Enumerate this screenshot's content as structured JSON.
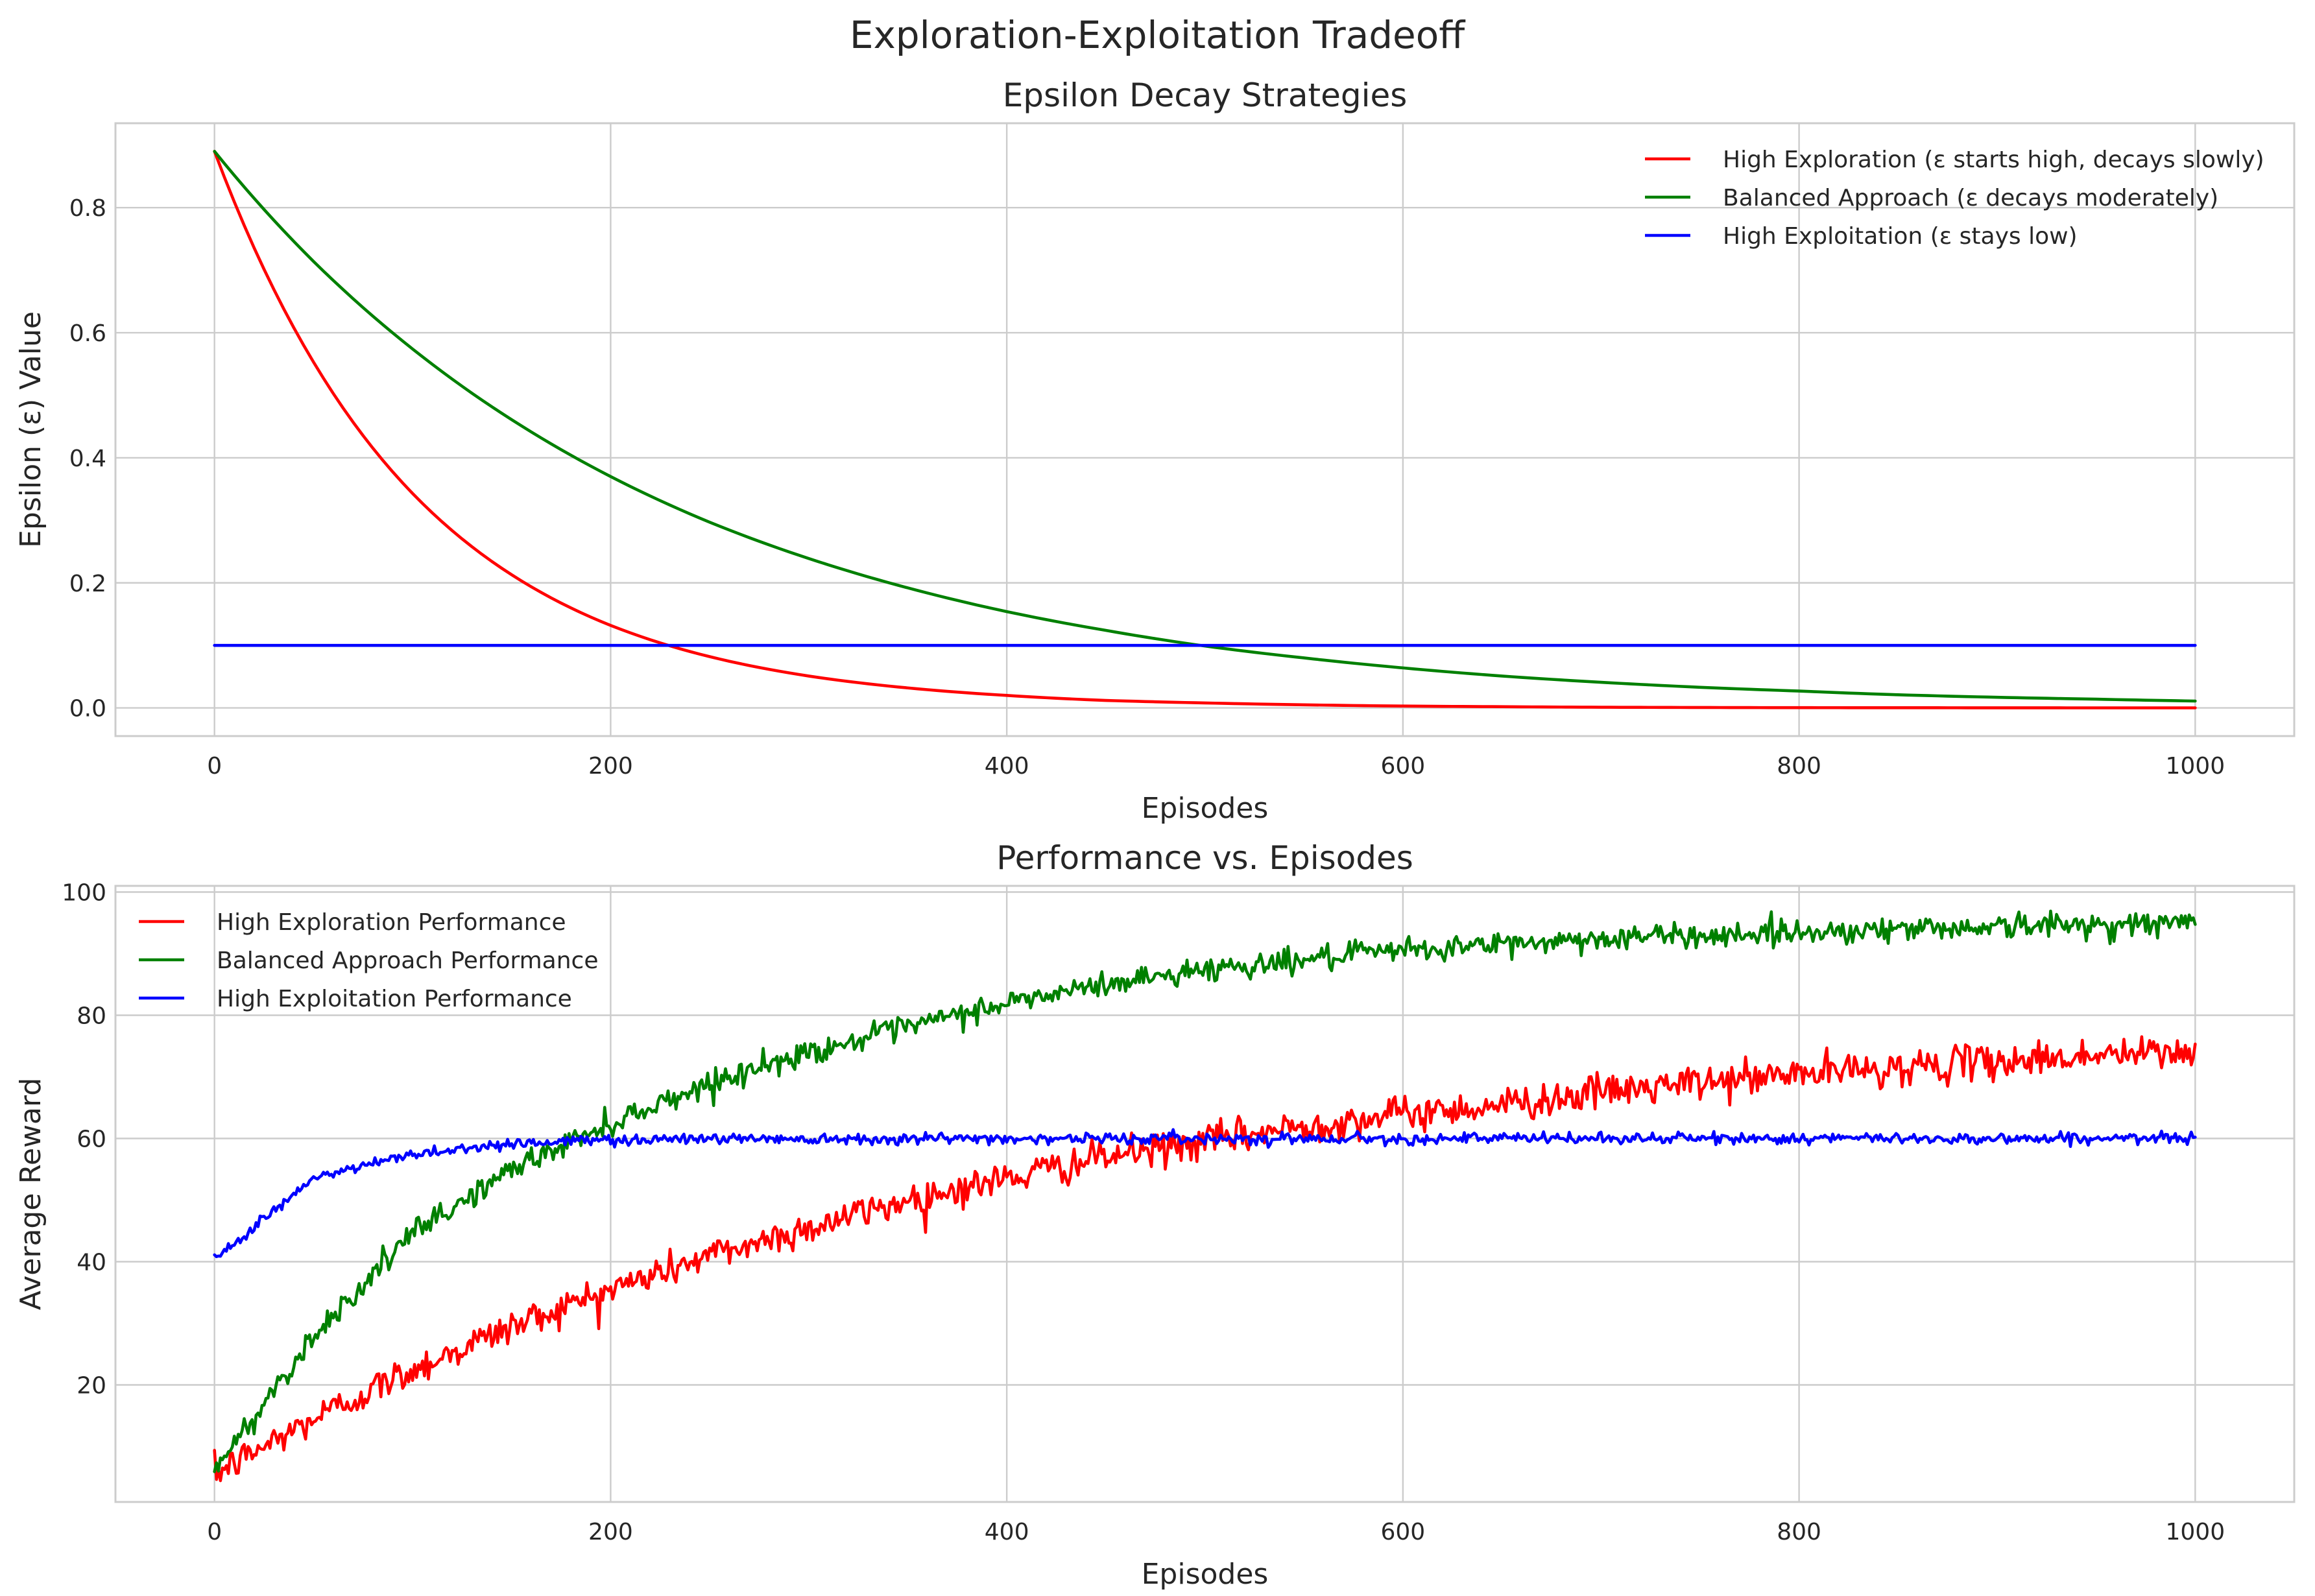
{
  "figure": {
    "suptitle": "Exploration-Exploitation Tradeoff"
  },
  "colors": {
    "exploration": "#ff0000",
    "balanced": "#008000",
    "exploitation": "#0000ff",
    "grid": "#cccccc",
    "frame": "#cccccc",
    "text": "#262626"
  },
  "chart_data": [
    {
      "type": "line",
      "title": "Epsilon Decay Strategies",
      "xlabel": "Episodes",
      "ylabel": "Epsilon (ε) Value",
      "xlim": [
        -50,
        1050
      ],
      "ylim": [
        -0.045,
        0.935
      ],
      "xticks": [
        0,
        200,
        400,
        600,
        800,
        1000
      ],
      "yticks": [
        0.0,
        0.2,
        0.4,
        0.6,
        0.8
      ],
      "xtick_labels": [
        "0",
        "200",
        "400",
        "600",
        "800",
        "1000"
      ],
      "ytick_labels": [
        "0.0",
        "0.2",
        "0.4",
        "0.6",
        "0.8"
      ],
      "grid": true,
      "legend_position": "upper right",
      "x": [
        0,
        50,
        100,
        150,
        200,
        250,
        300,
        350,
        400,
        450,
        500,
        550,
        600,
        650,
        700,
        750,
        800,
        850,
        900,
        950,
        1000
      ],
      "series": [
        {
          "name": "High Exploration (ε starts high, decays slowly)",
          "color_key": "exploration",
          "values": [
            0.89,
            0.553,
            0.343,
            0.213,
            0.132,
            0.082,
            0.051,
            0.032,
            0.02,
            0.012,
            0.008,
            0.005,
            0.003,
            0.002,
            0.0011,
            0.0007,
            0.0004,
            0.0003,
            0.0002,
            0.0001,
            0.0001
          ]
        },
        {
          "name": "Balanced Approach (ε decays moderately)",
          "color_key": "balanced",
          "values": [
            0.89,
            0.714,
            0.574,
            0.461,
            0.37,
            0.297,
            0.239,
            0.192,
            0.154,
            0.124,
            0.099,
            0.08,
            0.064,
            0.051,
            0.041,
            0.033,
            0.027,
            0.021,
            0.017,
            0.014,
            0.011
          ]
        },
        {
          "name": "High Exploitation (ε stays low)",
          "color_key": "exploitation",
          "values": [
            0.1,
            0.1,
            0.1,
            0.1,
            0.1,
            0.1,
            0.1,
            0.1,
            0.1,
            0.1,
            0.1,
            0.1,
            0.1,
            0.1,
            0.1,
            0.1,
            0.1,
            0.1,
            0.1,
            0.1,
            0.1
          ]
        }
      ]
    },
    {
      "type": "line",
      "title": "Performance vs. Episodes",
      "xlabel": "Episodes",
      "ylabel": "Average Reward",
      "xlim": [
        -50,
        1050
      ],
      "ylim": [
        1,
        101
      ],
      "xticks": [
        0,
        200,
        400,
        600,
        800,
        1000
      ],
      "yticks": [
        20,
        40,
        60,
        80,
        100
      ],
      "xtick_labels": [
        "0",
        "200",
        "400",
        "600",
        "800",
        "1000"
      ],
      "ytick_labels": [
        "20",
        "40",
        "60",
        "80",
        "100"
      ],
      "grid": true,
      "legend_position": "upper left",
      "noisy": true,
      "x": [
        0,
        50,
        100,
        150,
        200,
        250,
        300,
        350,
        400,
        450,
        500,
        550,
        600,
        650,
        700,
        750,
        800,
        850,
        900,
        950,
        1000
      ],
      "series": [
        {
          "name": "High Exploration Performance",
          "color_key": "exploration",
          "noise": 1.4,
          "values": [
            5.5,
            14.5,
            22.5,
            29.5,
            35.5,
            41,
            45.5,
            50,
            53.5,
            57,
            59.5,
            62,
            64,
            65.5,
            67.5,
            69,
            70.5,
            71.5,
            72.5,
            73.5,
            74
          ]
        },
        {
          "name": "Balanced Approach Performance",
          "color_key": "balanced",
          "noise": 1.0,
          "values": [
            6,
            28,
            44.5,
            55,
            62.5,
            69,
            74,
            78,
            82,
            85,
            87.5,
            89,
            90.5,
            91.5,
            92.5,
            93,
            93.5,
            94,
            94.5,
            94.7,
            95
          ]
        },
        {
          "name": "High Exploitation Performance",
          "color_key": "exploitation",
          "noise": 0.45,
          "values": [
            40.5,
            53.5,
            57.5,
            59.2,
            59.8,
            60,
            60,
            60,
            60,
            60,
            60,
            60,
            60,
            60,
            60,
            60,
            60,
            60,
            60,
            60,
            60
          ]
        }
      ]
    }
  ]
}
